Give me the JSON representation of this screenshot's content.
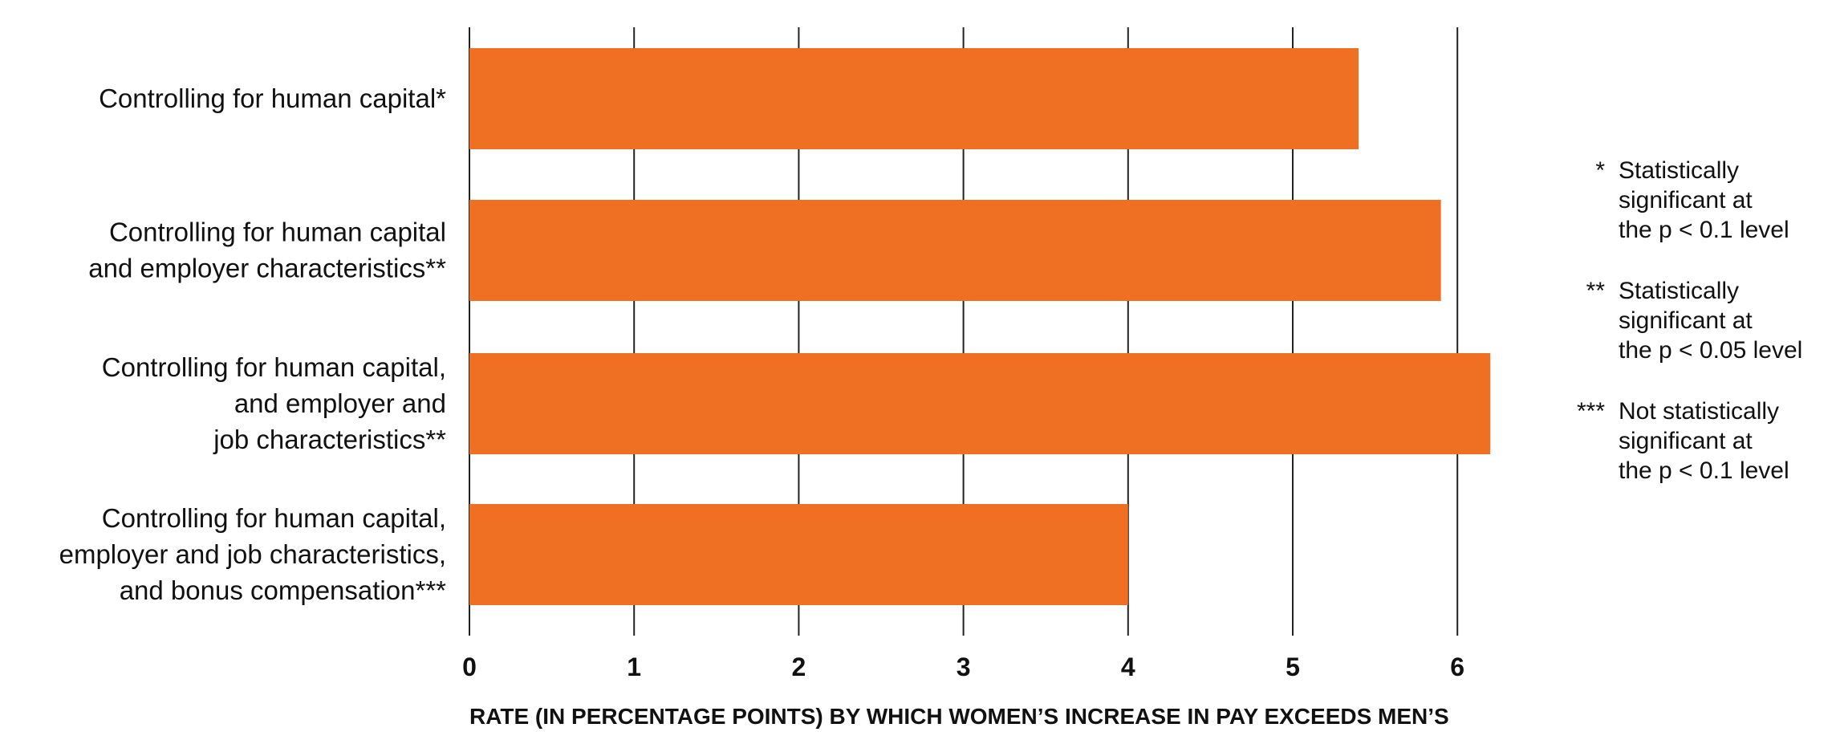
{
  "chart_data": {
    "type": "bar",
    "orientation": "horizontal",
    "categories": [
      [
        "Controlling for human capital*"
      ],
      [
        "Controlling for human capital",
        "and employer characteristics**"
      ],
      [
        "Controlling for human capital,",
        "and employer and",
        "job characteristics**"
      ],
      [
        "Controlling for human capital,",
        "employer and job characteristics,",
        "and bonus compensation***"
      ]
    ],
    "values": [
      5.4,
      5.9,
      6.2,
      4.0
    ],
    "xlabel": "RATE (IN PERCENTAGE POINTS) BY WHICH WOMEN’S INCREASE IN PAY EXCEEDS MEN’S",
    "ylabel": "",
    "xlim": [
      0,
      6
    ],
    "xticks": [
      "0",
      "1",
      "2",
      "3",
      "4",
      "5",
      "6"
    ],
    "grid": true,
    "bar_color": "#F07023",
    "legend_position": "right",
    "legend": [
      {
        "marker": "*",
        "lines": [
          "Statistically",
          "significant at",
          "the p < 0.1 level"
        ]
      },
      {
        "marker": "**",
        "lines": [
          "Statistically",
          "significant at",
          "the p < 0.05 level"
        ]
      },
      {
        "marker": "***",
        "lines": [
          "Not statistically",
          "significant at",
          "the p < 0.1 level"
        ]
      }
    ]
  }
}
